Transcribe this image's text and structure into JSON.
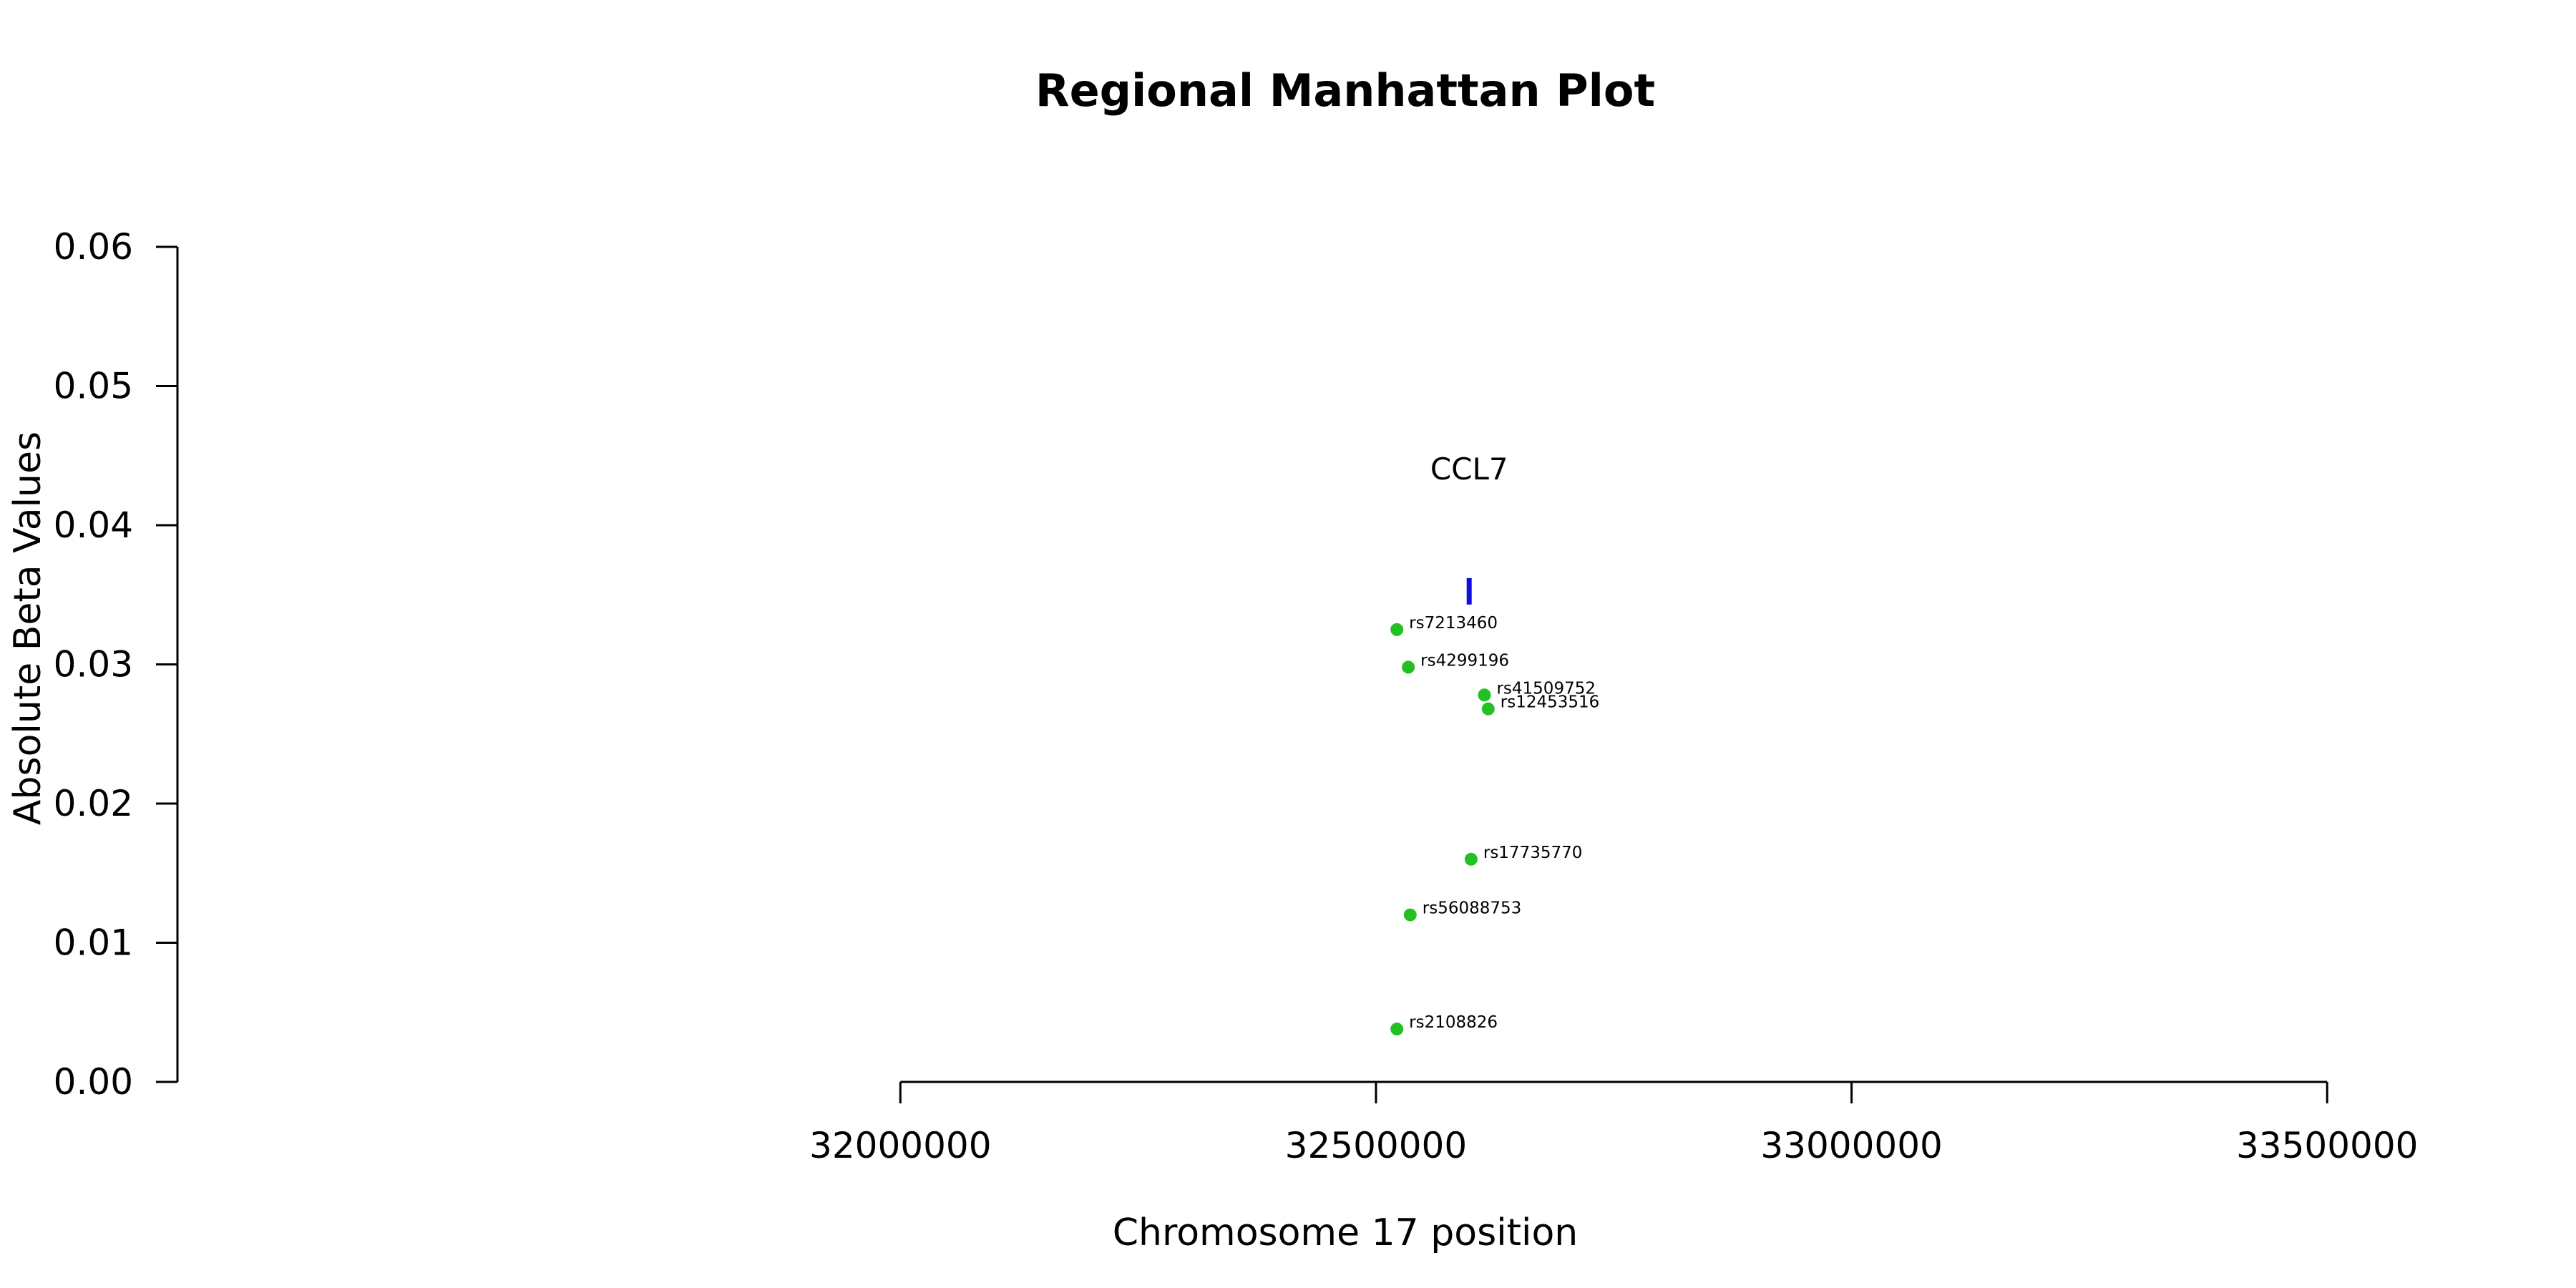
{
  "chart_data": {
    "type": "scatter",
    "title": "Regional Manhattan Plot",
    "xlabel": "Chromosome 17 position",
    "ylabel": "Absolute Beta Values",
    "xlim": [
      31240000,
      33560000
    ],
    "ylim": [
      0,
      0.06
    ],
    "x_axis_range": [
      32000000,
      33500000
    ],
    "xticks": [
      32000000,
      32500000,
      33000000,
      33500000
    ],
    "xtick_labels": [
      "32000000",
      "32500000",
      "33000000",
      "33500000"
    ],
    "yticks": [
      0,
      0.01,
      0.02,
      0.03,
      0.04,
      0.05,
      0.06
    ],
    "ytick_labels": [
      "0.00",
      "0.01",
      "0.02",
      "0.03",
      "0.04",
      "0.05",
      "0.06"
    ],
    "grid": false,
    "point_color": "#22c022",
    "points": [
      {
        "label": "rs7213460",
        "x": 32522000,
        "y": 0.0325
      },
      {
        "label": "rs4299196",
        "x": 32534000,
        "y": 0.0298
      },
      {
        "label": "rs41509752",
        "x": 32614000,
        "y": 0.0278
      },
      {
        "label": "rs12453516",
        "x": 32618000,
        "y": 0.0268
      },
      {
        "label": "rs17735770",
        "x": 32600000,
        "y": 0.016
      },
      {
        "label": "rs56088753",
        "x": 32536000,
        "y": 0.012
      },
      {
        "label": "rs2108826",
        "x": 32522000,
        "y": 0.0038
      }
    ],
    "gene": {
      "name": "CCL7",
      "x": 32598000,
      "y_low": 0.0343,
      "y_high": 0.0362,
      "color": "#1010dd"
    }
  }
}
